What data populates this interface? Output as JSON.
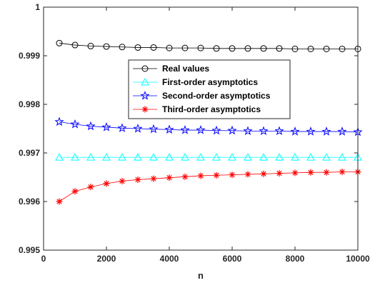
{
  "chart_data": {
    "type": "line",
    "title": "",
    "xlabel": "n",
    "ylabel": "",
    "xlim": [
      0,
      10000
    ],
    "ylim": [
      0.995,
      1
    ],
    "x_ticks": [
      0,
      2000,
      4000,
      6000,
      8000,
      10000
    ],
    "x_tick_labels": [
      "0",
      "2000",
      "4000",
      "6000",
      "8000",
      "10000"
    ],
    "y_ticks": [
      0.995,
      0.996,
      0.997,
      0.998,
      0.999,
      1
    ],
    "y_tick_labels": [
      "0.995",
      "0.996",
      "0.997",
      "0.998",
      "0.999",
      "1"
    ],
    "grid": false,
    "legend_position": "center",
    "x": [
      500,
      1000,
      1500,
      2000,
      2500,
      3000,
      3500,
      4000,
      4500,
      5000,
      5500,
      6000,
      6500,
      7000,
      7500,
      8000,
      8500,
      9000,
      9500,
      10000
    ],
    "series": [
      {
        "name": "Real values",
        "color": "#000000",
        "marker": "circle",
        "values": [
          0.99926,
          0.99922,
          0.9992,
          0.99919,
          0.99918,
          0.99917,
          0.99917,
          0.99916,
          0.99916,
          0.99916,
          0.99915,
          0.99915,
          0.99915,
          0.99915,
          0.99915,
          0.99914,
          0.99914,
          0.99914,
          0.99914,
          0.99914
        ]
      },
      {
        "name": "First-order asymptotics",
        "color": "#00ffff",
        "marker": "triangle",
        "values": [
          0.99691,
          0.99691,
          0.99691,
          0.99691,
          0.99691,
          0.99691,
          0.99691,
          0.99691,
          0.99691,
          0.99691,
          0.99691,
          0.99691,
          0.99691,
          0.99691,
          0.99691,
          0.99691,
          0.99691,
          0.99691,
          0.99691,
          0.99691
        ]
      },
      {
        "name": "Second-order asymptotics",
        "color": "#0000ff",
        "marker": "star",
        "values": [
          0.99764,
          0.99759,
          0.99755,
          0.99753,
          0.99751,
          0.9975,
          0.99749,
          0.99748,
          0.99747,
          0.99747,
          0.99746,
          0.99746,
          0.99745,
          0.99745,
          0.99745,
          0.99744,
          0.99744,
          0.99744,
          0.99744,
          0.99743
        ]
      },
      {
        "name": "Third-order asymptotics",
        "color": "#ff0000",
        "marker": "asterisk",
        "values": [
          0.996,
          0.99621,
          0.9963,
          0.99637,
          0.99642,
          0.99645,
          0.99647,
          0.99649,
          0.99651,
          0.99653,
          0.99654,
          0.99655,
          0.99656,
          0.99657,
          0.99658,
          0.99659,
          0.9966,
          0.9966,
          0.99661,
          0.99661
        ]
      }
    ]
  }
}
